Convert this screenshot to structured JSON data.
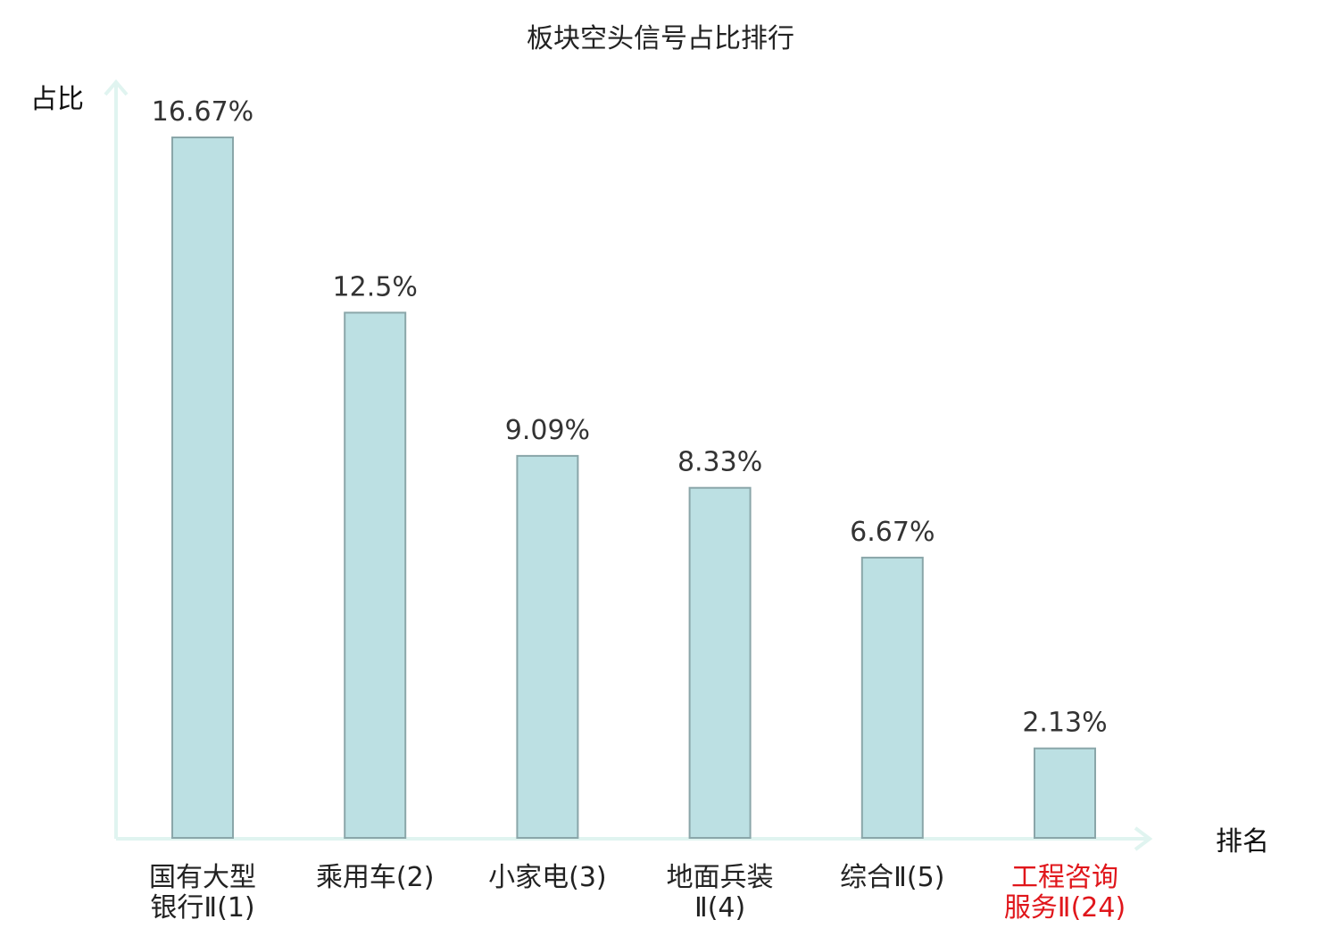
{
  "chart_data": {
    "type": "bar",
    "title": "板块空头信号占比排行",
    "ylabel": "占比",
    "xlabel": "排名",
    "categories": [
      [
        "国有大型",
        "银行Ⅱ(1)"
      ],
      [
        "乘用车(2)"
      ],
      [
        "小家电(3)"
      ],
      [
        "地面兵装",
        "Ⅱ(4)"
      ],
      [
        "综合Ⅱ(5)"
      ],
      [
        "工程咨询",
        "服务Ⅱ(24)"
      ]
    ],
    "values": [
      16.67,
      12.5,
      9.09,
      8.33,
      6.67,
      2.13
    ],
    "value_labels": [
      "16.67%",
      "12.5%",
      "9.09%",
      "8.33%",
      "6.67%",
      "2.13%"
    ],
    "highlighted_index": 5,
    "ylim": [
      0,
      18
    ],
    "grid": false,
    "colors": {
      "bar_fill": "#bce0e3",
      "bar_stroke": "#8aa6a9",
      "axis": "#e0f4f0",
      "highlight_text": "#e0161b",
      "text": "#222222"
    }
  }
}
